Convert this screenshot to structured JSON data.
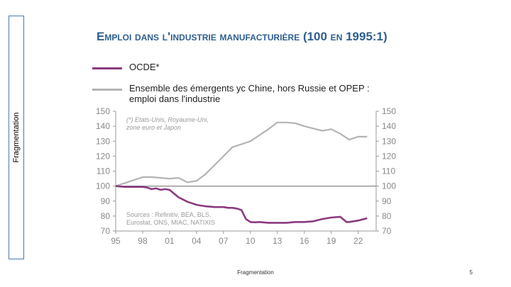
{
  "sidebar": {
    "label": "Fragmentation"
  },
  "footer": {
    "text": "Fragmentation",
    "page": "5"
  },
  "chart_data": {
    "type": "line",
    "title": "Emploi dans l'industrie manufacturière (100 en 1995:1)",
    "x_tick_labels": [
      "95",
      "98",
      "01",
      "04",
      "07",
      "10",
      "13",
      "16",
      "19",
      "22"
    ],
    "x_ticks": [
      1995,
      1998,
      2001,
      2004,
      2007,
      2010,
      2013,
      2016,
      2019,
      2022
    ],
    "xlim": [
      1995,
      2024
    ],
    "ylim": [
      70,
      150
    ],
    "y_ticks": [
      70,
      80,
      90,
      100,
      110,
      120,
      130,
      140,
      150
    ],
    "y_axes": "left and right",
    "legend_placement": "top-left, above plot",
    "annotations": [
      {
        "text_lines": [
          "(*) Etats-Unis, Royaume-Uni,",
          "zone euro et Japon"
        ],
        "style": "italic"
      },
      {
        "text_lines": [
          "Sources : Refinitiv, BEA, BLS,",
          "Eurostat, ONS, MIAC, NATIXIS"
        ],
        "style": "normal"
      }
    ],
    "series": [
      {
        "name": "OCDE*",
        "legend_lines": [
          "OCDE*"
        ],
        "color": "#8b3a80",
        "x": [
          1995,
          1996,
          1997,
          1998,
          1998.5,
          1999,
          1999.5,
          2000,
          2000.5,
          2001,
          2001.5,
          2002,
          2002.5,
          2003,
          2004,
          2004.5,
          2005,
          2006,
          2007,
          2007.5,
          2008,
          2008.5,
          2009,
          2009.5,
          2010,
          2010.5,
          2011,
          2012,
          2013,
          2014,
          2015,
          2016,
          2017,
          2018,
          2019,
          2020,
          2020.3,
          2020.7,
          2021,
          2022,
          2023
        ],
        "y": [
          100,
          99.5,
          99.5,
          99.5,
          99,
          98,
          98.5,
          97.5,
          98,
          97.5,
          95,
          92.5,
          91,
          89.5,
          87.5,
          87,
          86.5,
          86,
          86,
          85.5,
          85.5,
          85,
          84,
          78,
          76,
          75.8,
          76,
          75.5,
          75.5,
          75.5,
          76,
          76,
          76.5,
          78,
          79,
          79.5,
          78,
          76,
          76,
          77,
          78.5
        ]
      },
      {
        "name": "Ensemble des émergents yc Chine, hors Russie et OPEP : emploi dans l'industrie",
        "legend_lines": [
          "Ensemble des émergents yc Chine, hors Russie et OPEP :",
          "emploi dans l'industrie"
        ],
        "color": "#b3b3b3",
        "x": [
          1995,
          1996,
          1997,
          1998,
          1999,
          2000,
          2001,
          2002,
          2003,
          2004,
          2005,
          2006,
          2007,
          2008,
          2009,
          2010,
          2011,
          2012,
          2013,
          2014,
          2015,
          2016,
          2017,
          2018,
          2019,
          2020,
          2021,
          2022,
          2023
        ],
        "y": [
          100,
          102,
          104,
          106,
          106,
          105.5,
          105,
          105.5,
          102.5,
          103.5,
          108,
          114,
          120,
          126,
          128,
          130,
          134,
          138,
          142.5,
          142.5,
          142,
          140,
          138.5,
          137,
          138,
          135,
          131,
          133,
          133
        ]
      }
    ],
    "reference_line": {
      "y": 100,
      "color": "#888888"
    }
  }
}
